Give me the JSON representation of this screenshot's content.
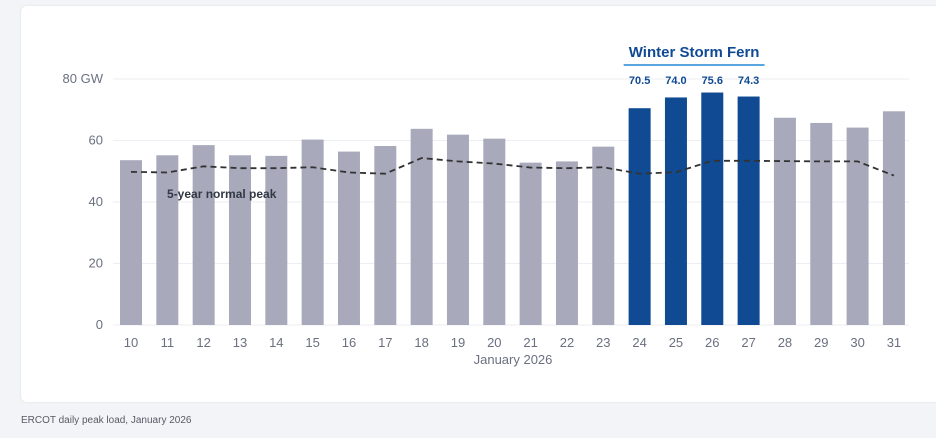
{
  "chart_data": {
    "type": "bar",
    "categories": [
      "10",
      "11",
      "12",
      "13",
      "14",
      "15",
      "16",
      "17",
      "18",
      "19",
      "20",
      "21",
      "22",
      "23",
      "24",
      "25",
      "26",
      "27",
      "28",
      "29",
      "30",
      "31"
    ],
    "values": [
      53.6,
      55.2,
      58.5,
      55.2,
      55.0,
      60.3,
      56.4,
      58.2,
      63.8,
      61.9,
      60.6,
      52.8,
      53.2,
      58.0,
      70.5,
      74.0,
      75.6,
      74.3,
      67.4,
      65.7,
      64.2,
      69.5
    ],
    "normal_peak": [
      49.8,
      49.6,
      51.6,
      51.0,
      51.0,
      51.3,
      49.6,
      49.2,
      54.3,
      53.2,
      52.5,
      51.2,
      51.0,
      51.3,
      49.2,
      49.7,
      53.4,
      53.4,
      53.3,
      53.2,
      53.2,
      48.6
    ],
    "highlight_indices": [
      14,
      15,
      16,
      17
    ],
    "highlight_value_labels": [
      "70.5",
      "74.0",
      "75.6",
      "74.3"
    ],
    "highlight_label": "Winter Storm Fern",
    "normal_label": "5-year normal peak",
    "xlabel": "January 2026",
    "ylabel": "",
    "ylim": [
      0,
      80
    ],
    "yticks": [
      0,
      20,
      40,
      60,
      80
    ],
    "ytick_labels": [
      "0",
      "20",
      "40",
      "60",
      "80 GW"
    ],
    "grid": true,
    "colors": {
      "bar": "#a8aabb",
      "highlight": "#0f4a93",
      "normal_line": "#333333",
      "bracket": "#5aa7e0",
      "grid": "#eceef3"
    }
  },
  "caption": "ERCOT daily peak load, January 2026"
}
